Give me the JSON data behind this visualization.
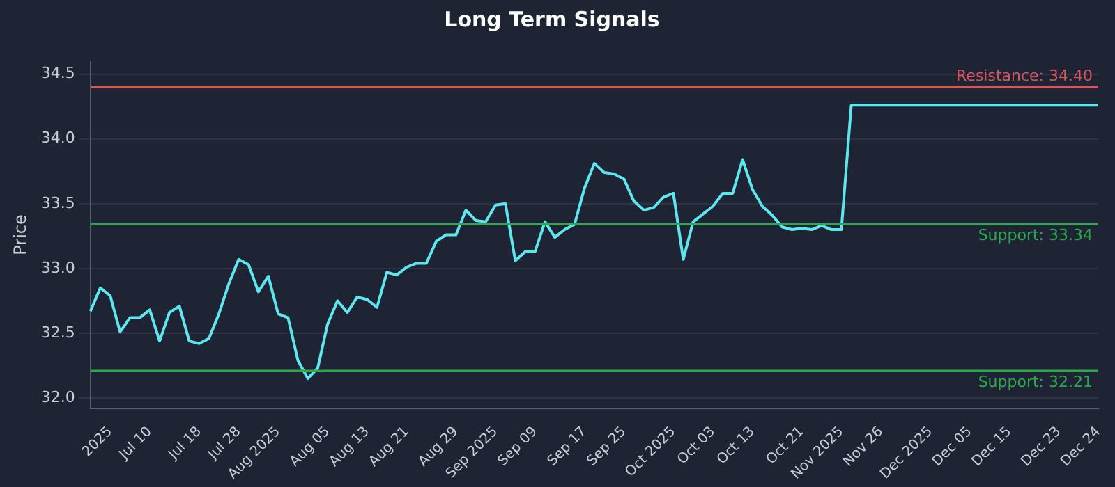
{
  "chart_data": {
    "type": "line",
    "title": "Long Term Signals",
    "ylabel": "Price",
    "categories": [
      null,
      null,
      "2025",
      null,
      null,
      null,
      "Jul 10",
      null,
      null,
      null,
      null,
      "Jul 18",
      null,
      null,
      null,
      "Jul 28",
      null,
      null,
      null,
      "Aug 2025",
      null,
      null,
      null,
      null,
      "Aug 05",
      null,
      null,
      null,
      "Aug 13",
      null,
      null,
      null,
      "Aug 21",
      null,
      null,
      null,
      null,
      "Aug 29",
      null,
      null,
      null,
      "Sep 2025",
      null,
      null,
      null,
      "Sep 09",
      null,
      null,
      null,
      null,
      "Sep 17",
      null,
      null,
      null,
      "Sep 25",
      null,
      null,
      null,
      null,
      "Oct 2025",
      null,
      null,
      null,
      "Oct 03",
      null,
      null,
      null,
      "Oct 13",
      null,
      null,
      null,
      null,
      "Oct 21",
      null,
      null,
      null,
      "Nov 2025",
      null,
      null,
      null,
      "Nov 26",
      null,
      null,
      null,
      null,
      "Dec 2025",
      null,
      null,
      null,
      "Dec 05",
      null,
      null,
      null,
      "Dec 15",
      null,
      null,
      null,
      null,
      "Dec 23",
      null,
      null,
      null,
      "Dec 24"
    ],
    "series": [
      {
        "color": "#5ee6ee",
        "values": [
          32.67,
          32.85,
          32.79,
          32.51,
          32.62,
          32.62,
          32.68,
          32.44,
          32.66,
          32.71,
          32.44,
          32.42,
          32.46,
          32.65,
          32.88,
          33.07,
          33.03,
          32.82,
          32.94,
          32.65,
          32.62,
          32.29,
          32.15,
          32.23,
          32.57,
          32.75,
          32.66,
          32.78,
          32.76,
          32.7,
          32.97,
          32.95,
          33.01,
          33.04,
          33.04,
          33.21,
          33.26,
          33.26,
          33.45,
          33.37,
          33.36,
          33.49,
          33.5,
          33.06,
          33.13,
          33.13,
          33.36,
          33.24,
          33.3,
          33.34,
          33.62,
          33.81,
          33.74,
          33.73,
          33.69,
          33.52,
          33.45,
          33.47,
          33.55,
          33.58,
          33.07,
          33.36,
          33.42,
          33.48,
          33.58,
          33.58,
          33.84,
          33.61,
          33.48,
          33.41,
          33.32,
          33.3,
          33.31,
          33.3,
          33.33,
          33.3,
          33.3,
          34.26,
          34.26,
          34.26,
          34.26,
          34.26,
          34.26,
          34.26,
          34.26,
          34.26,
          34.26,
          34.26,
          34.26,
          34.26,
          34.26,
          34.26,
          34.26,
          34.26,
          34.26,
          34.26,
          34.26,
          34.26,
          34.26,
          34.26,
          34.26,
          34.26,
          34.26
        ]
      }
    ],
    "ylim": [
      31.92,
      34.6
    ],
    "yticks": [
      {
        "value": 32,
        "label": "32.0"
      },
      32.5,
      {
        "value": 33,
        "label": "33.0"
      },
      33.5,
      {
        "value": 34,
        "label": "34.0"
      },
      34.5
    ],
    "grid": "y",
    "legend": false,
    "marker": "none",
    "line_style": "solid",
    "ref_lines": [
      {
        "axis": "y",
        "value": 34.4,
        "label": "Resistance: 34.40",
        "color": "#d9545a"
      },
      {
        "axis": "y",
        "value": 33.34,
        "label": "Support: 33.34",
        "color": "#2ea84f"
      },
      {
        "axis": "y",
        "value": 32.21,
        "label": "Support: 32.21",
        "color": "#2ea84f"
      }
    ]
  }
}
